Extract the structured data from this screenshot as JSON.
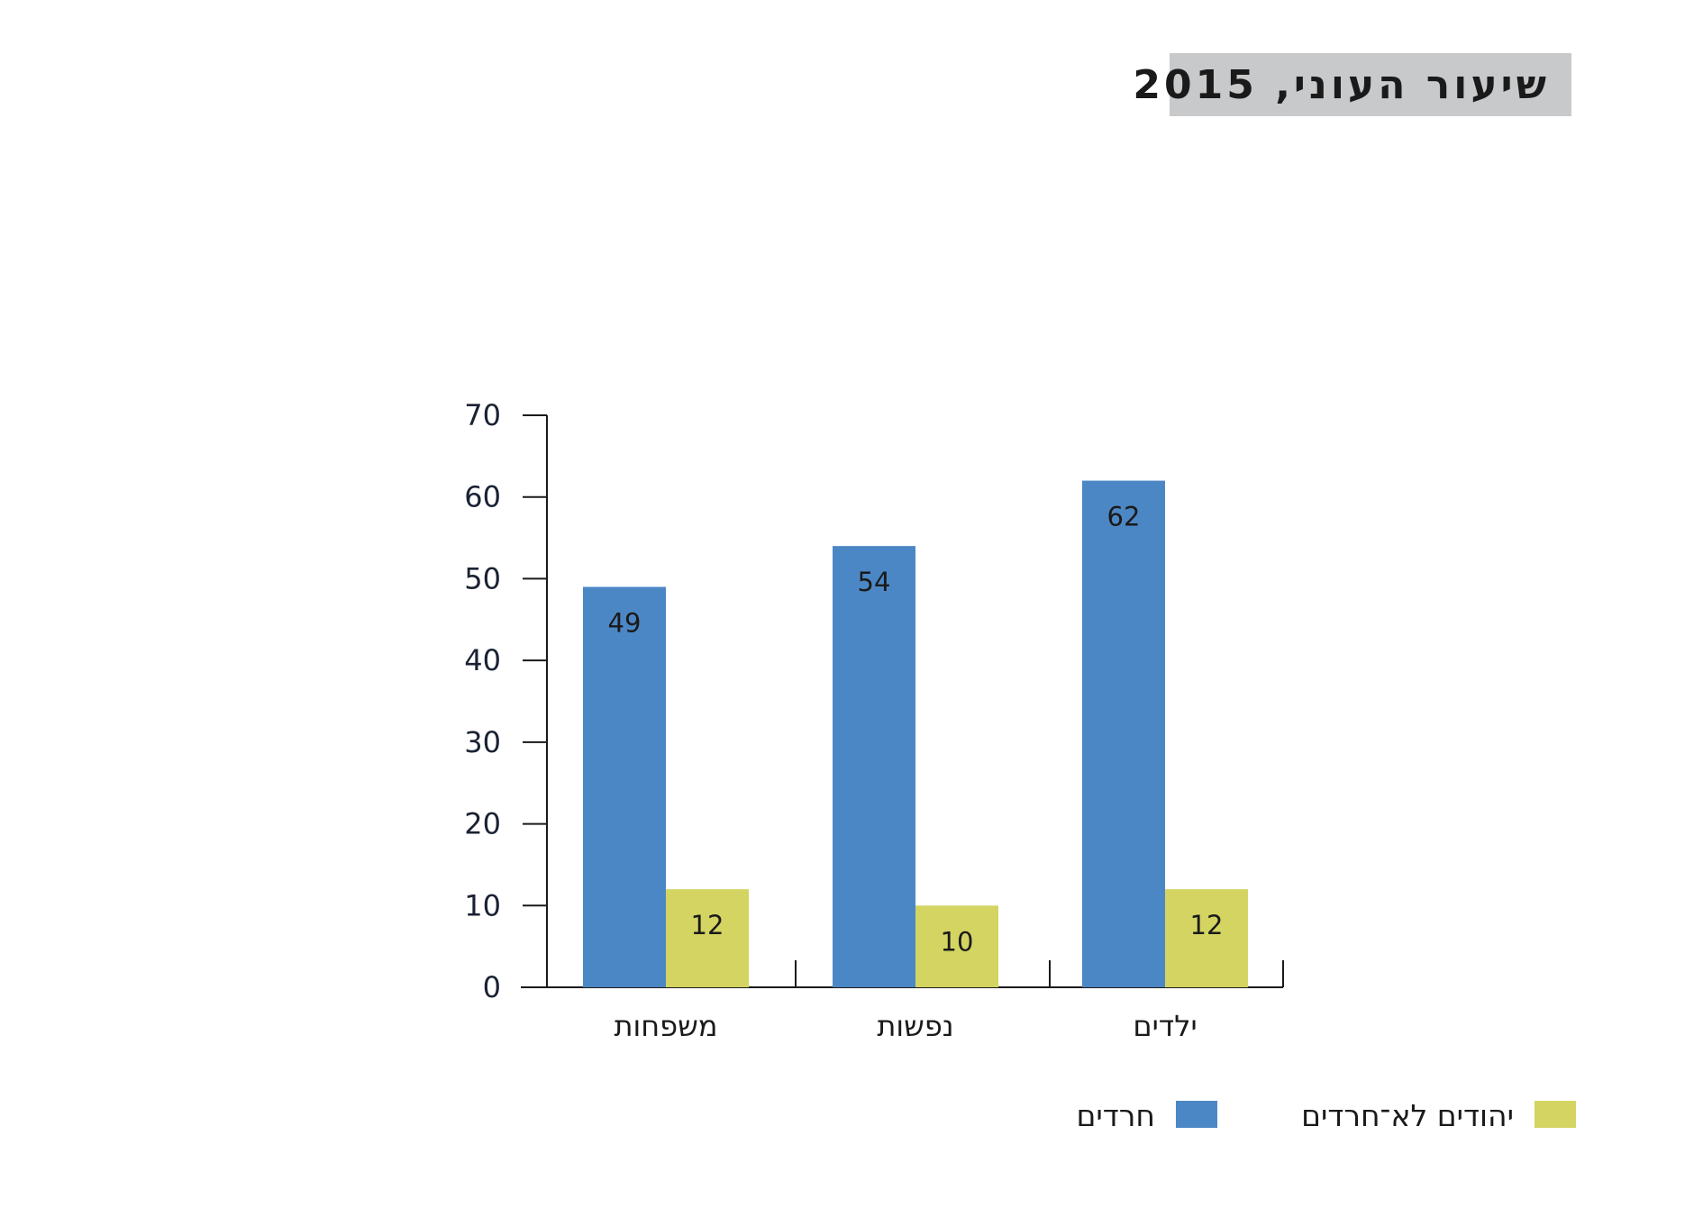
{
  "chart_data": {
    "type": "bar",
    "title": "שיעור העוני, 2015",
    "categories": [
      "משפחות",
      "נפשות",
      "ילדים"
    ],
    "series": [
      {
        "name": "חרדים",
        "color": "#4c87c5",
        "values": [
          49,
          54,
          62
        ]
      },
      {
        "name": "יהודים לא־חרדים",
        "color": "#d4d462",
        "values": [
          12,
          10,
          12
        ]
      }
    ],
    "yticks": [
      0,
      10,
      20,
      30,
      40,
      50,
      60,
      70
    ],
    "ylim": [
      0,
      70
    ],
    "xlabel": "",
    "ylabel": "",
    "grid": false,
    "legend": "bottom",
    "legend_order": [
      "יהודים לא־חרדים",
      "חרדים"
    ]
  }
}
